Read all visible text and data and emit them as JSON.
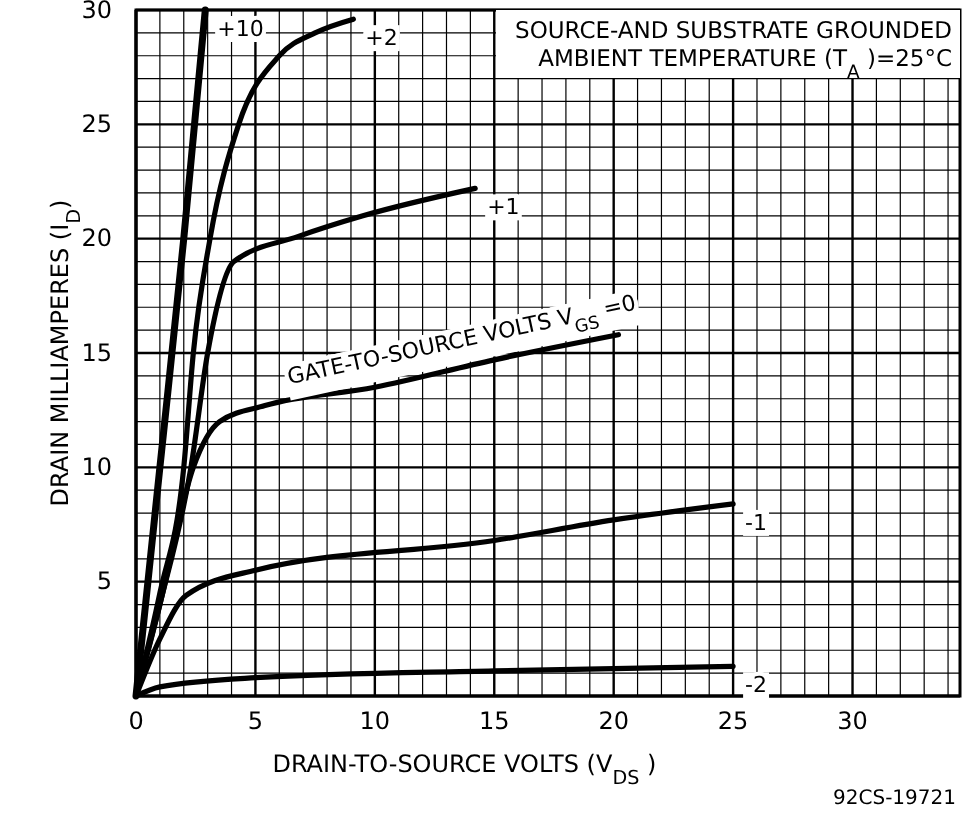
{
  "chart_data": {
    "type": "line",
    "xlabel": "DRAIN-TO-SOURCE VOLTS (V$_{DS}$ )",
    "ylabel": "DRAIN MILLIAMPERES (I$_{D}$)",
    "xlim": [
      0,
      34.5
    ],
    "ylim": [
      0,
      30
    ],
    "xticks": [
      0,
      {
        "value": 1,
        "label": null
      },
      {
        "value": 2,
        "label": null
      },
      {
        "value": 3,
        "label": null
      },
      {
        "value": 4,
        "label": null
      },
      5,
      {
        "value": 6,
        "label": null
      },
      {
        "value": 7,
        "label": null
      },
      {
        "value": 8,
        "label": null
      },
      {
        "value": 9,
        "label": null
      },
      10,
      {
        "value": 11,
        "label": null
      },
      {
        "value": 12,
        "label": null
      },
      {
        "value": 13,
        "label": null
      },
      {
        "value": 14,
        "label": null
      },
      15,
      {
        "value": 16,
        "label": null
      },
      {
        "value": 17,
        "label": null
      },
      {
        "value": 18,
        "label": null
      },
      {
        "value": 19,
        "label": null
      },
      20,
      {
        "value": 21,
        "label": null
      },
      {
        "value": 22,
        "label": null
      },
      {
        "value": 23,
        "label": null
      },
      {
        "value": 24,
        "label": null
      },
      25,
      {
        "value": 26,
        "label": null
      },
      {
        "value": 27,
        "label": null
      },
      {
        "value": 28,
        "label": null
      },
      {
        "value": 29,
        "label": null
      },
      30,
      {
        "value": 31,
        "label": null
      },
      {
        "value": 32,
        "label": null
      },
      {
        "value": 33,
        "label": null
      },
      {
        "value": 34,
        "label": null
      }
    ],
    "yticks": [
      {
        "value": 1,
        "label": null
      },
      {
        "value": 2,
        "label": null
      },
      {
        "value": 3,
        "label": null
      },
      {
        "value": 4,
        "label": null
      },
      5,
      {
        "value": 6,
        "label": null
      },
      {
        "value": 7,
        "label": null
      },
      {
        "value": 8,
        "label": null
      },
      {
        "value": 9,
        "label": null
      },
      10,
      {
        "value": 11,
        "label": null
      },
      {
        "value": 12,
        "label": null
      },
      {
        "value": 13,
        "label": null
      },
      {
        "value": 14,
        "label": null
      },
      15,
      {
        "value": 16,
        "label": null
      },
      {
        "value": 17,
        "label": null
      },
      {
        "value": 18,
        "label": null
      },
      {
        "value": 19,
        "label": null
      },
      20,
      {
        "value": 21,
        "label": null
      },
      {
        "value": 22,
        "label": null
      },
      {
        "value": 23,
        "label": null
      },
      {
        "value": 24,
        "label": null
      },
      25,
      {
        "value": 26,
        "label": null
      },
      {
        "value": 27,
        "label": null
      },
      {
        "value": 28,
        "label": null
      },
      {
        "value": 29,
        "label": null
      },
      30
    ],
    "grid": true,
    "marker": "none",
    "line_style": "solid",
    "series": [
      {
        "name": "+10",
        "color": "#000000",
        "x": [
          0,
          1,
          2,
          2.9
        ],
        "values": [
          0,
          10,
          20,
          30
        ]
      },
      {
        "name": "+2",
        "color": "#000000",
        "x": [
          0,
          1,
          2,
          2.4,
          3.1,
          4.3,
          6,
          7.5,
          9.1
        ],
        "values": [
          0,
          4.5,
          10,
          15,
          20,
          25,
          28,
          29,
          29.6
        ]
      },
      {
        "name": "+1",
        "color": "#000000",
        "x": [
          0,
          1,
          2.3,
          3,
          4.1,
          6.8,
          9.5,
          14.2
        ],
        "values": [
          0,
          4,
          10,
          15,
          19,
          20.1,
          21,
          22.2
        ]
      },
      {
        "name": "GATE-TO-SOURCE VOLTS V$_{GS}$ =0",
        "color": "#000000",
        "x": [
          0,
          1,
          2.4,
          3.5,
          5.4,
          10,
          15,
          20.2
        ],
        "values": [
          0,
          4,
          10,
          12,
          12.7,
          13.5,
          14.7,
          15.8
        ]
      },
      {
        "name": "-1",
        "color": "#000000",
        "x": [
          0,
          1,
          2.1,
          5,
          15,
          20,
          25
        ],
        "values": [
          0,
          2.5,
          4.4,
          5.5,
          6.8,
          7.7,
          8.4
        ]
      },
      {
        "name": "-2",
        "color": "#000000",
        "x": [
          0,
          1,
          5,
          15,
          25
        ],
        "values": [
          0,
          0.4,
          0.8,
          1.1,
          1.3
        ]
      }
    ],
    "annotations": [
      "SOURCE-AND SUBSTRATE GROUNDED",
      "AMBIENT TEMPERATURE (T$_{A}$ )=25°C",
      "92CS-19721"
    ]
  }
}
